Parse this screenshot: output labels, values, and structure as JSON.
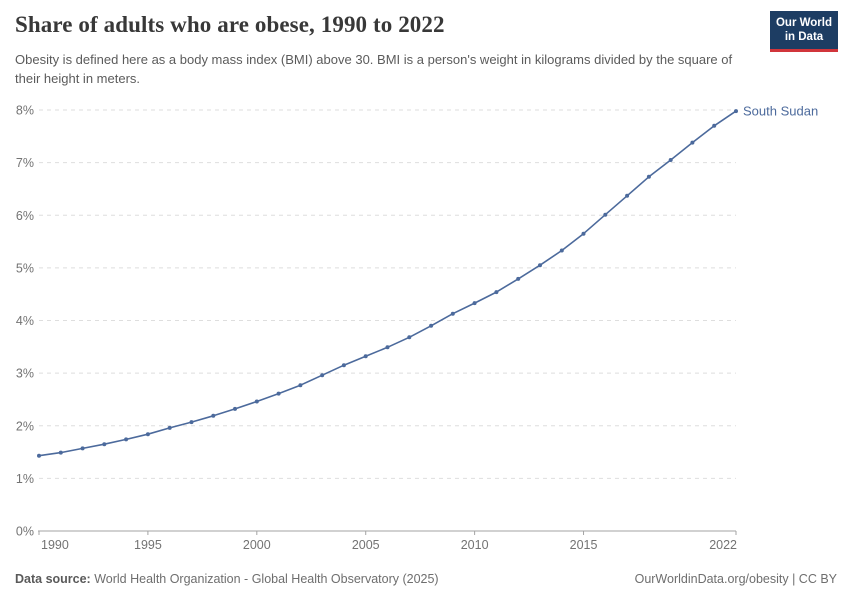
{
  "header": {
    "title": "Share of adults who are obese, 1990 to 2022",
    "subtitle": "Obesity is defined here as a body mass index (BMI) above 30. BMI is a person's weight in kilograms divided by the square of their height in meters.",
    "logo": {
      "line1": "Our World",
      "line2": "in Data",
      "background_color": "#1d3d63",
      "stripe_color": "#d1353b"
    }
  },
  "chart_data": {
    "type": "line",
    "title": "Share of adults who are obese, 1990 to 2022",
    "xlabel": "",
    "ylabel": "",
    "xlim": [
      1990,
      2022
    ],
    "ylim": [
      0,
      8
    ],
    "xticks": [
      1990,
      1995,
      2000,
      2005,
      2010,
      2015,
      2022
    ],
    "yticks": [
      0,
      1,
      2,
      3,
      4,
      5,
      6,
      7,
      8
    ],
    "ytick_suffix": "%",
    "grid": "horizontal-dashed",
    "legend_position": "end-of-line-label",
    "x": [
      1990,
      1991,
      1992,
      1993,
      1994,
      1995,
      1996,
      1997,
      1998,
      1999,
      2000,
      2001,
      2002,
      2003,
      2004,
      2005,
      2006,
      2007,
      2008,
      2009,
      2010,
      2011,
      2012,
      2013,
      2014,
      2015,
      2016,
      2017,
      2018,
      2019,
      2020,
      2021,
      2022
    ],
    "series": [
      {
        "name": "South Sudan",
        "color": "#4c6a9c",
        "values": [
          1.43,
          1.49,
          1.57,
          1.65,
          1.74,
          1.84,
          1.96,
          2.07,
          2.19,
          2.32,
          2.46,
          2.61,
          2.77,
          2.96,
          3.15,
          3.32,
          3.49,
          3.68,
          3.9,
          4.13,
          4.33,
          4.54,
          4.79,
          5.05,
          5.33,
          5.65,
          6.01,
          6.37,
          6.73,
          7.05,
          7.38,
          7.7,
          7.98
        ]
      }
    ]
  },
  "footer": {
    "source_label": "Data source:",
    "source_text": "World Health Organization - Global Health Observatory (2025)",
    "credit": "OurWorldinData.org/obesity | CC BY"
  }
}
